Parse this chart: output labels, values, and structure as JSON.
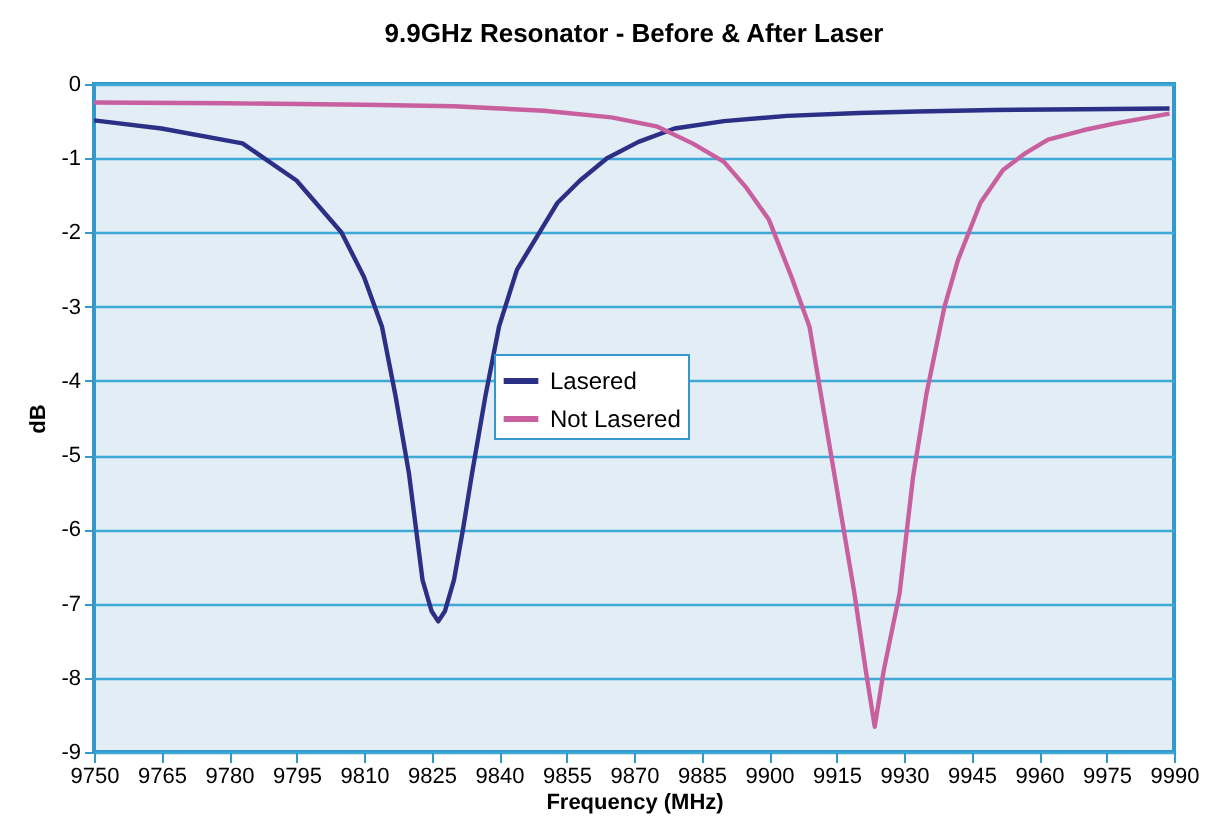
{
  "chart_data": {
    "type": "line",
    "title": "9.9GHz Resonator -  Before & After Laser",
    "xlabel": "Frequency (MHz)",
    "ylabel": "dB",
    "xlim": [
      9750,
      9990
    ],
    "ylim": [
      -9,
      0
    ],
    "xticks": [
      9750,
      9765,
      9780,
      9795,
      9810,
      9825,
      9840,
      9855,
      9870,
      9885,
      9900,
      9915,
      9930,
      9945,
      9960,
      9975,
      9990
    ],
    "yticks": [
      -9,
      -8,
      -7,
      -6,
      -5,
      -4,
      -3,
      -2,
      -1,
      0
    ],
    "grid": "y",
    "legend": "center",
    "marker": "none",
    "line_style": "solid",
    "series": [
      {
        "name": "Lasered",
        "color": "#2b2f86",
        "x": [
          9750,
          9765,
          9783,
          9795,
          9805,
          9810,
          9814,
          9817,
          9820,
          9823,
          9825,
          9826.5,
          9828,
          9830,
          9832,
          9834,
          9837,
          9840,
          9844,
          9849,
          9853,
          9858,
          9864,
          9871,
          9879,
          9890,
          9904,
          9920,
          9933,
          9950,
          9970,
          9989
        ],
        "values": [
          -0.49,
          -0.6,
          -0.8,
          -1.3,
          -2.0,
          -2.6,
          -3.27,
          -4.2,
          -5.25,
          -6.68,
          -7.1,
          -7.24,
          -7.1,
          -6.68,
          -6.0,
          -5.25,
          -4.2,
          -3.27,
          -2.5,
          -2.0,
          -1.6,
          -1.3,
          -1.0,
          -0.78,
          -0.6,
          -0.5,
          -0.43,
          -0.39,
          -0.37,
          -0.35,
          -0.34,
          -0.33
        ]
      },
      {
        "name": "Not Lasered",
        "color": "#c8609f",
        "x": [
          9750,
          9780,
          9810,
          9830,
          9850,
          9865,
          9875,
          9883,
          9890,
          9895,
          9900,
          9905,
          9909,
          9914,
          9919,
          9921.5,
          9923.5,
          9925.5,
          9929,
          9932,
          9935,
          9939,
          9942,
          9947,
          9952,
          9957,
          9962,
          9970,
          9977,
          9989
        ],
        "values": [
          -0.25,
          -0.26,
          -0.28,
          -0.3,
          -0.36,
          -0.45,
          -0.57,
          -0.8,
          -1.05,
          -1.4,
          -1.83,
          -2.6,
          -3.27,
          -5.07,
          -6.87,
          -7.9,
          -8.66,
          -7.9,
          -6.87,
          -5.3,
          -4.17,
          -3.0,
          -2.37,
          -1.6,
          -1.16,
          -0.93,
          -0.75,
          -0.62,
          -0.53,
          -0.4
        ]
      }
    ]
  }
}
